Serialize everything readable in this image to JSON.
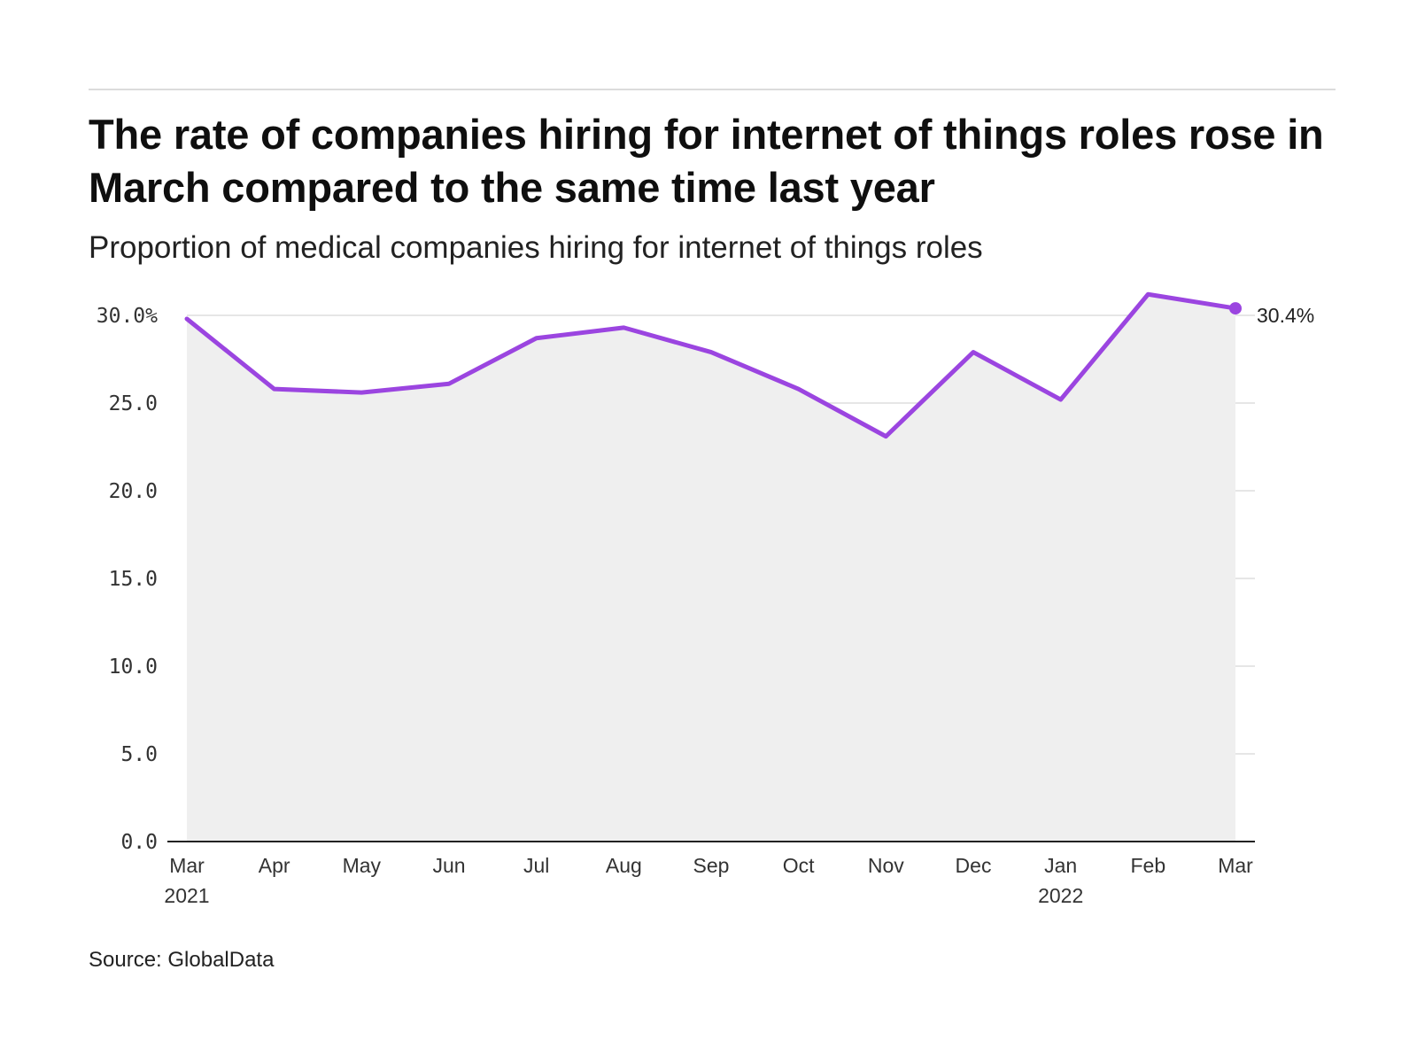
{
  "title": "The rate of companies hiring for internet of things roles rose in March compared to the same time last year",
  "subtitle": "Proportion of medical companies hiring for internet of things roles",
  "source": "Source: GlobalData",
  "colors": {
    "line": "#9b45e0",
    "area": "#efefef",
    "grid": "#dedede",
    "axis": "#222222"
  },
  "chart_data": {
    "type": "line",
    "title": "The rate of companies hiring for internet of things roles rose in March compared to the same time last year",
    "subtitle": "Proportion of medical companies hiring for internet of things roles",
    "categories": [
      "Mar",
      "Apr",
      "May",
      "Jun",
      "Jul",
      "Aug",
      "Sep",
      "Oct",
      "Nov",
      "Dec",
      "Jan",
      "Feb",
      "Mar"
    ],
    "category_years": [
      "2021",
      "",
      "",
      "",
      "",
      "",
      "",
      "",
      "",
      "",
      "2022",
      "",
      ""
    ],
    "series": [
      {
        "values": [
          29.8,
          25.8,
          25.6,
          26.1,
          28.7,
          29.3,
          27.9,
          25.8,
          23.1,
          27.9,
          25.2,
          31.2,
          30.4
        ]
      }
    ],
    "y_ticks": [
      "0.0",
      "5.0",
      "10.0",
      "15.0",
      "20.0",
      "25.0",
      "30.0%"
    ],
    "y_tick_values": [
      0,
      5,
      10,
      15,
      20,
      25,
      30
    ],
    "ylim": [
      0,
      31.5
    ],
    "grid": true,
    "area_fill": true,
    "end_label": "30.4%",
    "xlabel": "",
    "ylabel": ""
  }
}
